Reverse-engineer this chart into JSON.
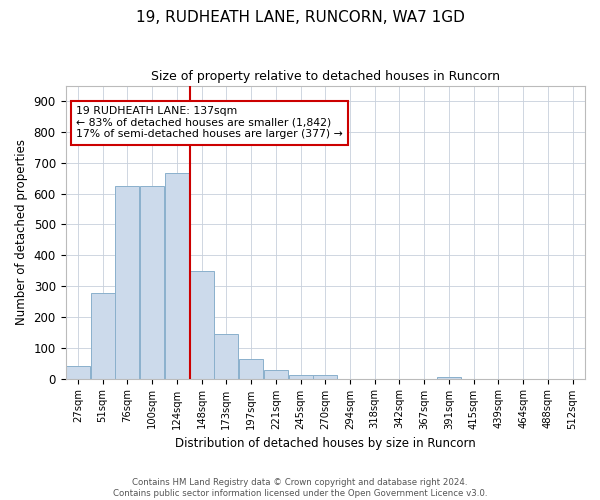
{
  "title1": "19, RUDHEATH LANE, RUNCORN, WA7 1GD",
  "title2": "Size of property relative to detached houses in Runcorn",
  "xlabel": "Distribution of detached houses by size in Runcorn",
  "ylabel": "Number of detached properties",
  "footer1": "Contains HM Land Registry data © Crown copyright and database right 2024.",
  "footer2": "Contains public sector information licensed under the Open Government Licence v3.0.",
  "bin_labels": [
    "27sqm",
    "51sqm",
    "76sqm",
    "100sqm",
    "124sqm",
    "148sqm",
    "173sqm",
    "197sqm",
    "221sqm",
    "245sqm",
    "270sqm",
    "294sqm",
    "318sqm",
    "342sqm",
    "367sqm",
    "391sqm",
    "415sqm",
    "439sqm",
    "464sqm",
    "488sqm",
    "512sqm"
  ],
  "bar_heights": [
    40,
    277,
    623,
    623,
    667,
    348,
    145,
    65,
    28,
    12,
    10,
    0,
    0,
    0,
    0,
    6,
    0,
    0,
    0,
    0,
    0
  ],
  "bar_color": "#ccdaeb",
  "bar_edge_color": "#8ab0cc",
  "vline_x_index": 4.52,
  "vline_color": "#cc0000",
  "annotation_line1": "19 RUDHEATH LANE: 137sqm",
  "annotation_line2": "← 83% of detached houses are smaller (1,842)",
  "annotation_line3": "17% of semi-detached houses are larger (377) →",
  "annotation_box_color": "#ffffff",
  "annotation_box_edge": "#cc0000",
  "ylim": [
    0,
    950
  ],
  "yticks": [
    0,
    100,
    200,
    300,
    400,
    500,
    600,
    700,
    800,
    900
  ],
  "background_color": "#ffffff",
  "grid_color": "#c8d0dc"
}
